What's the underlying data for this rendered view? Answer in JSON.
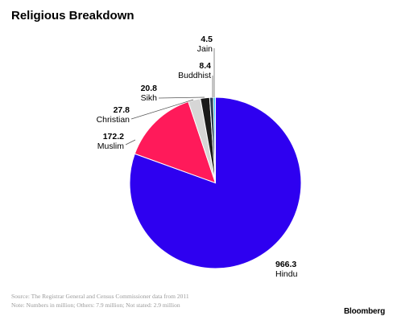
{
  "title": "Religious Breakdown",
  "chart_data": {
    "type": "pie",
    "title": "Religious Breakdown",
    "slices": [
      {
        "label": "Hindu",
        "value": 966.3,
        "value_text": "966.3",
        "color": "#2e00f0"
      },
      {
        "label": "Muslim",
        "value": 172.2,
        "value_text": "172.2",
        "color": "#ff1a5a"
      },
      {
        "label": "Christian",
        "value": 27.8,
        "value_text": "27.8",
        "color": "#d6d6d6"
      },
      {
        "label": "Sikh",
        "value": 20.8,
        "value_text": "20.8",
        "color": "#1a1a1a"
      },
      {
        "label": "Buddhist",
        "value": 8.4,
        "value_text": "8.4",
        "color": "#2a3f55"
      },
      {
        "label": "Jain",
        "value": 4.5,
        "value_text": "4.5",
        "color": "#33c8f2"
      }
    ]
  },
  "footer": {
    "source": "Source: The Registrar General and Census Commissioner data from 2011",
    "note": "Note: Numbers in million; Others: 7.9 million; Not stated: 2.9 million",
    "brand": "Bloomberg"
  }
}
